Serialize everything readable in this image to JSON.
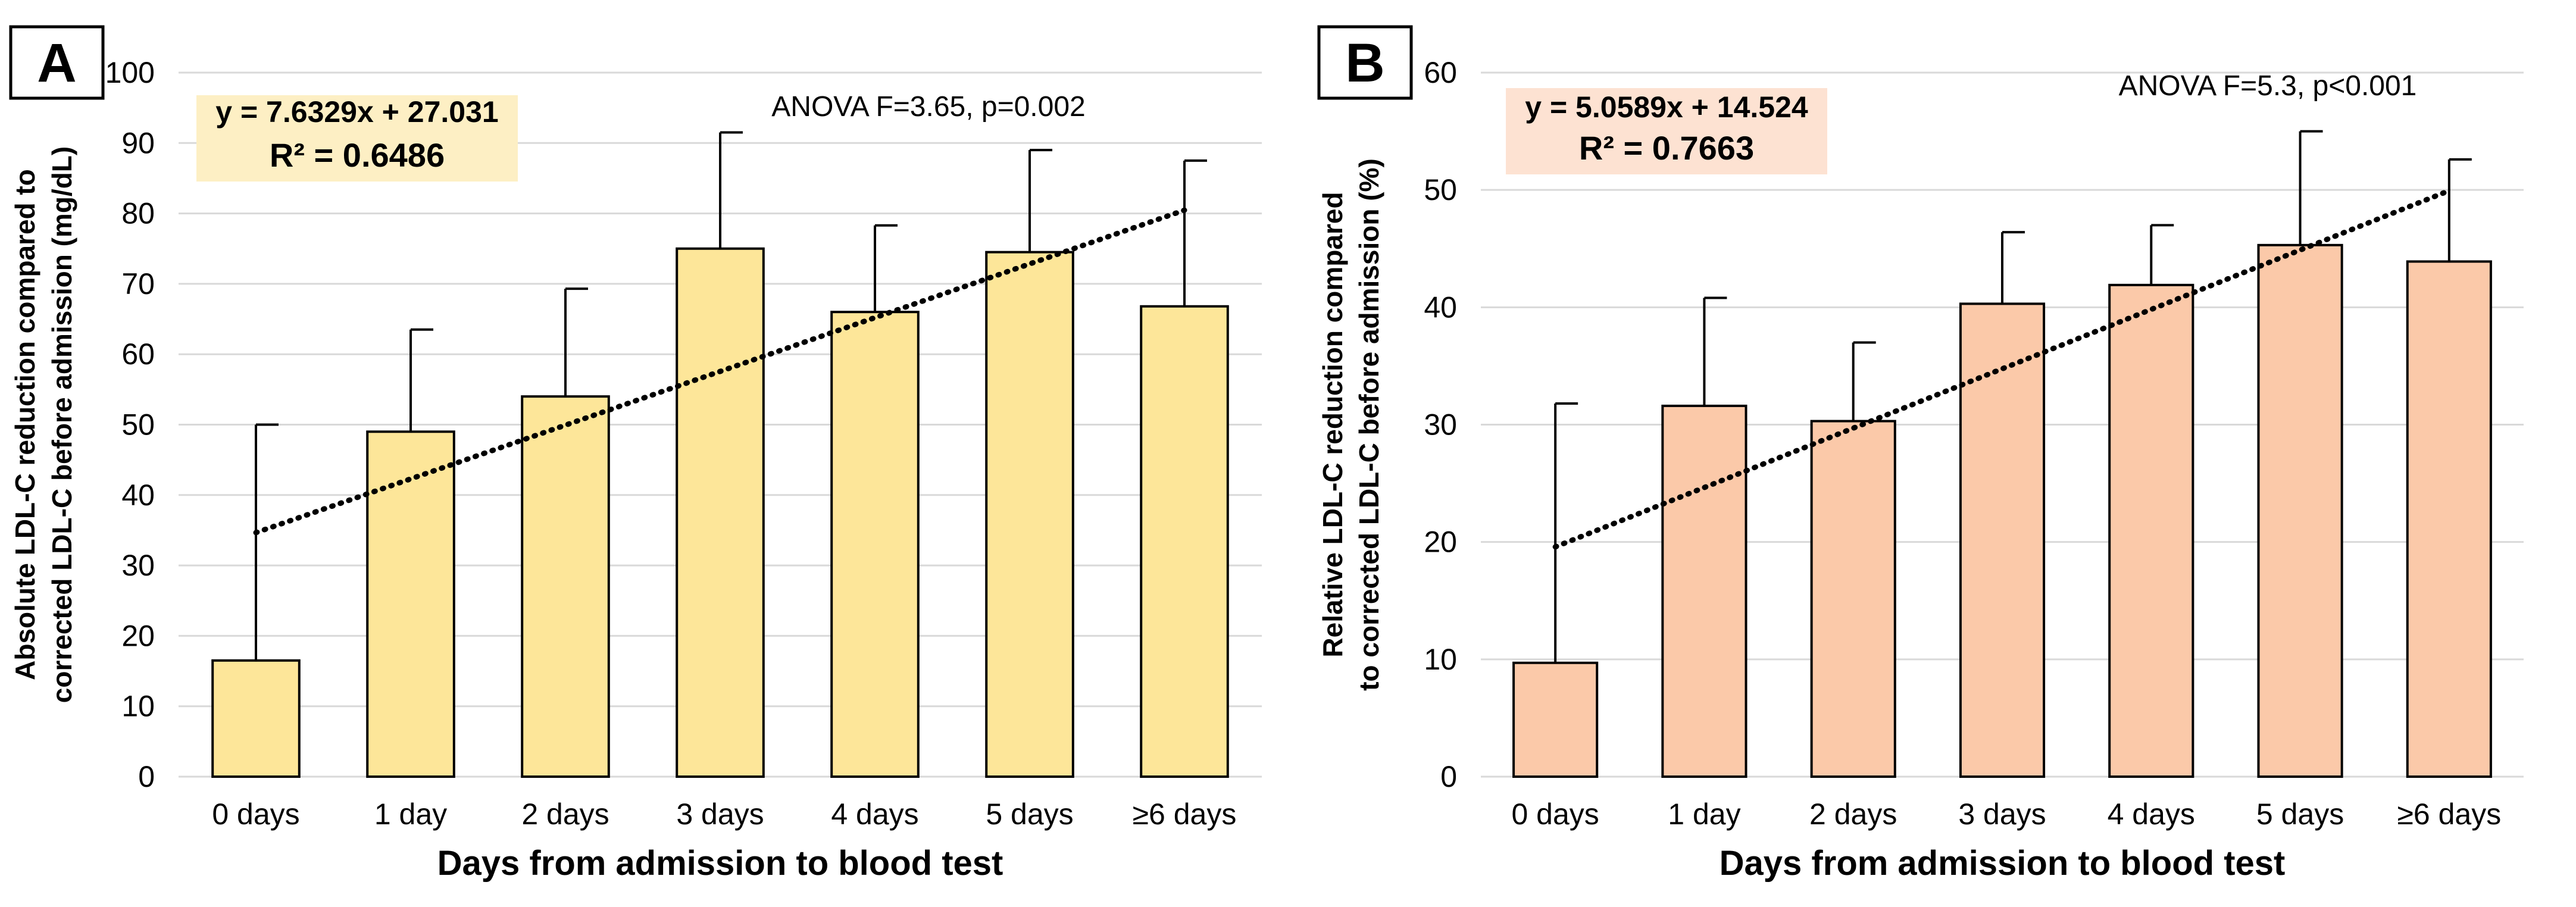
{
  "figure": {
    "xlabel": "Days from admission to blood test",
    "categories": [
      "0 days",
      "1 day",
      "2 days",
      "3 days",
      "4 days",
      "5 days",
      "≥6 days"
    ]
  },
  "chart_data": [
    {
      "panel": "A",
      "type": "bar",
      "categories": [
        "0 days",
        "1 day",
        "2 days",
        "3 days",
        "4 days",
        "5 days",
        "≥6 days"
      ],
      "values": [
        16.5,
        49.0,
        54.0,
        75.0,
        66.0,
        74.5,
        66.8
      ],
      "error_upper": [
        50.0,
        63.5,
        69.3,
        91.5,
        78.3,
        89.0,
        87.5
      ],
      "ylabel_line1": "Absolute LDL-C reduction compared to",
      "ylabel_line2": "corrected  LDL-C before admission (mg/dL)",
      "xlabel": "Days from admission to blood test",
      "ylim": [
        0,
        100
      ],
      "yticks": [
        "0",
        "10",
        "20",
        "30",
        "40",
        "50",
        "60",
        "70",
        "80",
        "90",
        "100"
      ],
      "trendline": {
        "slope": 7.6329,
        "intercept": 27.031
      },
      "equation": "y = 7.6329x + 27.031",
      "r_squared": "R² = 0.6486",
      "anova": "ANOVA F=3.65,  p=0.002",
      "bar_color": "#fde699",
      "equation_box_color": "#fdefc4"
    },
    {
      "panel": "B",
      "type": "bar",
      "categories": [
        "0 days",
        "1 day",
        "2 days",
        "3 days",
        "4 days",
        "5 days",
        "≥6 days"
      ],
      "values": [
        9.7,
        31.6,
        30.3,
        40.3,
        41.9,
        45.3,
        43.9
      ],
      "error_upper": [
        31.8,
        40.8,
        37.0,
        46.4,
        47.0,
        55.0,
        52.6
      ],
      "ylabel_line1": "Relative LDL-C reduction compared",
      "ylabel_line2": "to corrected LDL-C before admission (%)",
      "xlabel": "Days from admission to blood test",
      "ylim": [
        0,
        60
      ],
      "yticks": [
        "0",
        "10",
        "20",
        "30",
        "40",
        "50",
        "60"
      ],
      "trendline": {
        "slope": 5.0589,
        "intercept": 14.524
      },
      "equation": "y = 5.0589x + 14.524",
      "r_squared": "R² = 0.7663",
      "anova": "ANOVA F=5.3,  p<0.001",
      "bar_color": "#fbc9a9",
      "equation_box_color": "#fde2d2"
    }
  ]
}
